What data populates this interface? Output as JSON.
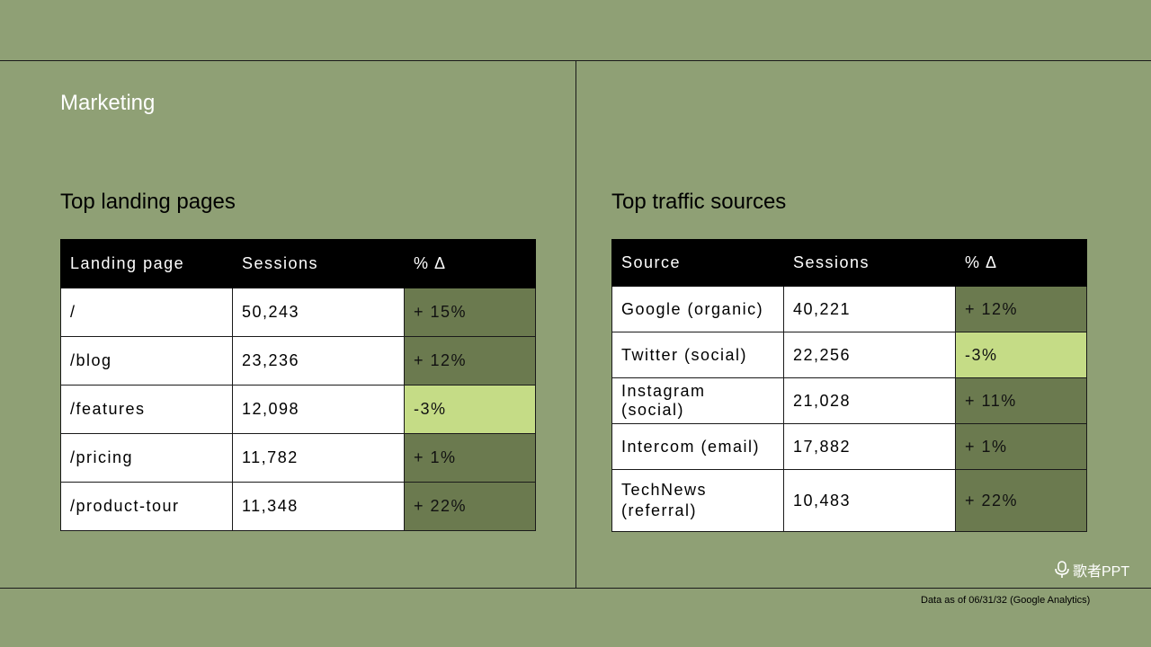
{
  "slide": {
    "section_title": "Marketing",
    "footnote": "Data as of 06/31/32 (Google Analytics)",
    "logo_text": "歌者PPT"
  },
  "landing": {
    "heading": "Top landing pages",
    "columns": [
      "Landing page",
      "Sessions",
      "% Δ"
    ],
    "rows": [
      {
        "page": "/",
        "sessions": "50,243",
        "delta": "+ 15%"
      },
      {
        "page": "/blog",
        "sessions": "23,236",
        "delta": "+ 12%"
      },
      {
        "page": "/features",
        "sessions": "12,098",
        "delta": "-3%"
      },
      {
        "page": "/pricing",
        "sessions": "11,782",
        "delta": "+ 1%"
      },
      {
        "page": "/product-tour",
        "sessions": "11,348",
        "delta": "+ 22%"
      }
    ]
  },
  "traffic": {
    "heading": "Top traffic sources",
    "columns": [
      "Source",
      "Sessions",
      "% Δ"
    ],
    "rows": [
      {
        "source": "Google (organic)",
        "sessions": "40,221",
        "delta": "+ 12%"
      },
      {
        "source": "Twitter (social)",
        "sessions": "22,256",
        "delta": "-3%"
      },
      {
        "source": "Instagram (social)",
        "sessions": "21,028",
        "delta": "+ 11%"
      },
      {
        "source": "Intercom (email)",
        "sessions": "17,882",
        "delta": "+ 1%"
      },
      {
        "source": "TechNews (referral)",
        "sessions": "10,483",
        "delta": "+ 22%"
      }
    ]
  },
  "colors": {
    "background": "#8fa075",
    "header_fill": "#000000",
    "positive_fill": "#6b7a4f",
    "negative_fill": "#c5dc86",
    "cell_fill": "#ffffff"
  }
}
